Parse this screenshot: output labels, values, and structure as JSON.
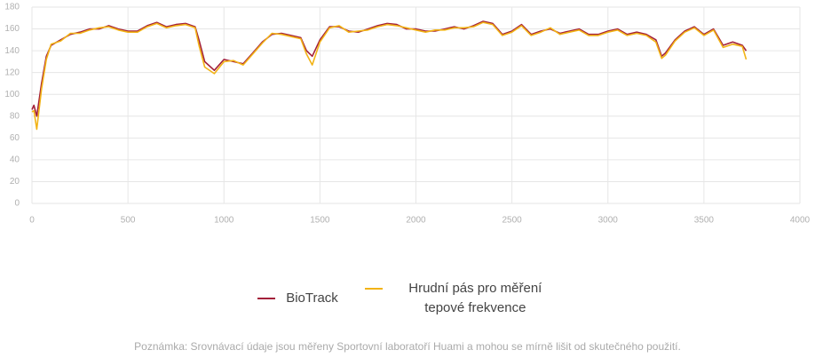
{
  "chart_data": {
    "type": "line",
    "x": [
      0,
      10,
      25,
      50,
      75,
      100,
      150,
      200,
      250,
      300,
      350,
      400,
      450,
      500,
      550,
      600,
      650,
      700,
      750,
      800,
      850,
      870,
      900,
      950,
      1000,
      1050,
      1100,
      1150,
      1200,
      1250,
      1300,
      1350,
      1400,
      1430,
      1460,
      1500,
      1550,
      1600,
      1650,
      1700,
      1750,
      1800,
      1850,
      1900,
      1950,
      2000,
      2050,
      2100,
      2150,
      2200,
      2250,
      2300,
      2350,
      2400,
      2450,
      2500,
      2550,
      2600,
      2650,
      2700,
      2750,
      2800,
      2850,
      2900,
      2950,
      3000,
      3050,
      3100,
      3150,
      3200,
      3250,
      3280,
      3300,
      3350,
      3400,
      3450,
      3500,
      3550,
      3600,
      3650,
      3700,
      3720
    ],
    "series": [
      {
        "name": "BioTrack",
        "color": "#a3203a",
        "values": [
          86,
          90,
          80,
          110,
          135,
          145,
          150,
          155,
          157,
          160,
          160,
          163,
          160,
          158,
          158,
          163,
          166,
          162,
          164,
          165,
          162,
          150,
          130,
          122,
          132,
          130,
          128,
          138,
          148,
          155,
          156,
          154,
          152,
          140,
          135,
          150,
          162,
          162,
          158,
          157,
          160,
          163,
          165,
          164,
          160,
          160,
          158,
          158,
          160,
          162,
          160,
          163,
          167,
          165,
          155,
          158,
          164,
          155,
          158,
          160,
          156,
          158,
          160,
          155,
          155,
          158,
          160,
          155,
          157,
          155,
          150,
          135,
          138,
          150,
          158,
          162,
          155,
          160,
          145,
          148,
          145,
          140
        ]
      },
      {
        "name": "Hrudní pás pro měření tepové frekvence",
        "color": "#f2b316",
        "values": [
          84,
          85,
          68,
          105,
          132,
          146,
          149,
          156,
          156,
          159,
          161,
          162,
          159,
          157,
          157,
          162,
          165,
          161,
          163,
          164,
          161,
          145,
          125,
          119,
          130,
          131,
          127,
          137,
          147,
          156,
          155,
          153,
          151,
          137,
          127,
          148,
          161,
          163,
          157,
          158,
          159,
          162,
          164,
          163,
          161,
          159,
          157,
          159,
          159,
          161,
          161,
          162,
          166,
          164,
          154,
          157,
          163,
          154,
          157,
          161,
          155,
          157,
          159,
          154,
          154,
          157,
          159,
          154,
          156,
          154,
          148,
          133,
          136,
          149,
          157,
          161,
          154,
          159,
          143,
          146,
          144,
          132
        ]
      }
    ],
    "xlim": [
      0,
      4000
    ],
    "xticks": [
      0,
      500,
      1000,
      1500,
      2000,
      2500,
      3000,
      3500,
      4000
    ],
    "ylim": [
      0,
      180
    ],
    "yticks": [
      0,
      20,
      40,
      60,
      80,
      100,
      120,
      140,
      160,
      180
    ],
    "grid": true,
    "legend": "bottom",
    "note": "Poznámka: Srovnávací údaje jsou měřeny Sportovní laboratoří Huami a mohou se mírně lišit od skutečného použití."
  }
}
